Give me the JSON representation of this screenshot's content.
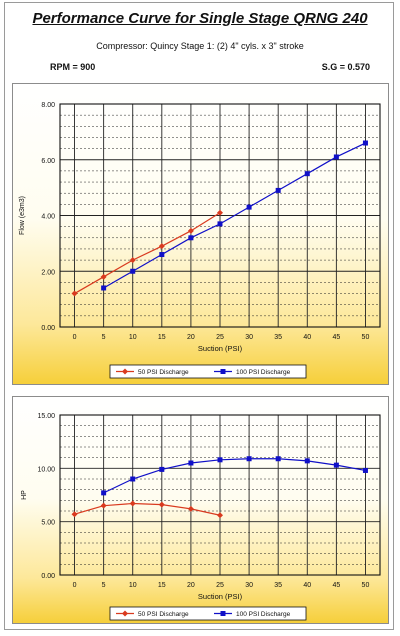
{
  "header": {
    "title": "Performance Curve for Single Stage QRNG 240",
    "subtitle": "Compressor: Quincy Stage 1: (2) 4\" cyls. x 3\" stroke",
    "rpm": "RPM = 900",
    "sg": "S.G = 0.570"
  },
  "colors": {
    "red": "#d93a1f",
    "blue": "#1010c8",
    "grid": "#222222"
  },
  "chart_data": [
    {
      "type": "line",
      "xlabel": "Suction (PSI)",
      "ylabel": "Flow (e3m3)",
      "xticks": [
        0,
        5,
        10,
        15,
        20,
        25,
        30,
        35,
        40,
        45,
        50
      ],
      "xlim": [
        -2.5,
        52.5
      ],
      "yticks": [
        "0.00",
        "2.00",
        "4.00",
        "6.00",
        "8.00"
      ],
      "ylim": [
        0,
        8
      ],
      "legend_position": "bottom-center",
      "series": [
        {
          "name": "50 PSI Discharge",
          "color": "#d93a1f",
          "marker": "diamond",
          "x": [
            0,
            5,
            10,
            15,
            20,
            25
          ],
          "y": [
            1.2,
            1.8,
            2.4,
            2.9,
            3.45,
            4.1
          ]
        },
        {
          "name": "100 PSI Discharge",
          "color": "#1010c8",
          "marker": "square",
          "x": [
            5,
            10,
            15,
            20,
            25,
            30,
            35,
            40,
            45,
            50
          ],
          "y": [
            1.4,
            2.0,
            2.6,
            3.2,
            3.7,
            4.3,
            4.9,
            5.5,
            6.1,
            6.6
          ]
        }
      ]
    },
    {
      "type": "line",
      "xlabel": "Suction (PSI)",
      "ylabel": "HP",
      "xticks": [
        0,
        5,
        10,
        15,
        20,
        25,
        30,
        35,
        40,
        45,
        50
      ],
      "xlim": [
        -2.5,
        52.5
      ],
      "yticks": [
        "0.00",
        "5.00",
        "10.00",
        "15.00"
      ],
      "ylim": [
        0,
        15
      ],
      "legend_position": "bottom-center",
      "series": [
        {
          "name": "50 PSI Discharge",
          "color": "#d93a1f",
          "marker": "diamond",
          "x": [
            0,
            5,
            10,
            15,
            20,
            25
          ],
          "y": [
            5.7,
            6.5,
            6.7,
            6.6,
            6.2,
            5.6
          ]
        },
        {
          "name": "100 PSI Discharge",
          "color": "#1010c8",
          "marker": "square",
          "x": [
            5,
            10,
            15,
            20,
            25,
            30,
            35,
            40,
            45,
            50
          ],
          "y": [
            7.7,
            9.0,
            9.9,
            10.5,
            10.8,
            10.9,
            10.9,
            10.7,
            10.3,
            9.8
          ]
        }
      ]
    }
  ]
}
